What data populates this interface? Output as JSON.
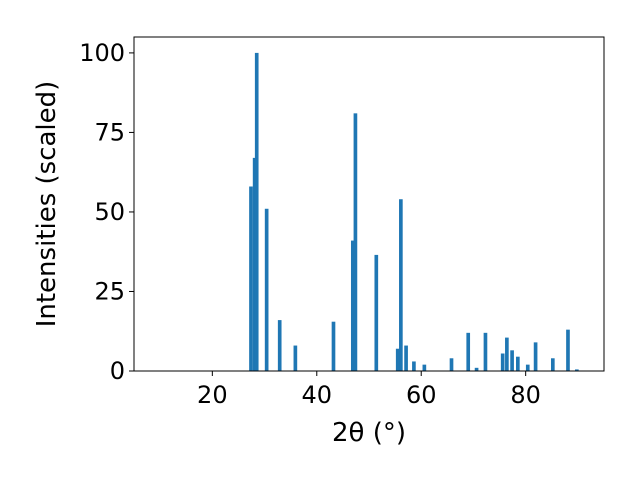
{
  "chart_data": {
    "type": "bar",
    "xlabel": "2θ (°)",
    "ylabel": "Intensities (scaled)",
    "xlim": [
      5,
      95
    ],
    "ylim": [
      0,
      105
    ],
    "xticks": [
      20,
      40,
      60,
      80
    ],
    "yticks": [
      0,
      25,
      50,
      75,
      100
    ],
    "grid": false,
    "bar_color": "#1f77b4",
    "bar_width": 0.7,
    "x": [
      27.4,
      28.1,
      28.5,
      30.4,
      32.9,
      35.9,
      43.2,
      46.9,
      47.4,
      51.4,
      55.5,
      56.1,
      57.1,
      58.6,
      60.6,
      65.8,
      69.0,
      70.6,
      72.3,
      75.6,
      76.4,
      77.4,
      78.5,
      80.4,
      81.9,
      85.2,
      88.1,
      89.8
    ],
    "values": [
      58,
      67,
      100,
      51,
      16,
      8,
      15.5,
      41,
      81,
      36.5,
      7,
      54,
      8,
      3,
      2,
      4,
      12,
      1,
      12,
      5.5,
      10.5,
      6.5,
      4.5,
      2,
      9,
      4,
      13,
      0.5
    ]
  }
}
